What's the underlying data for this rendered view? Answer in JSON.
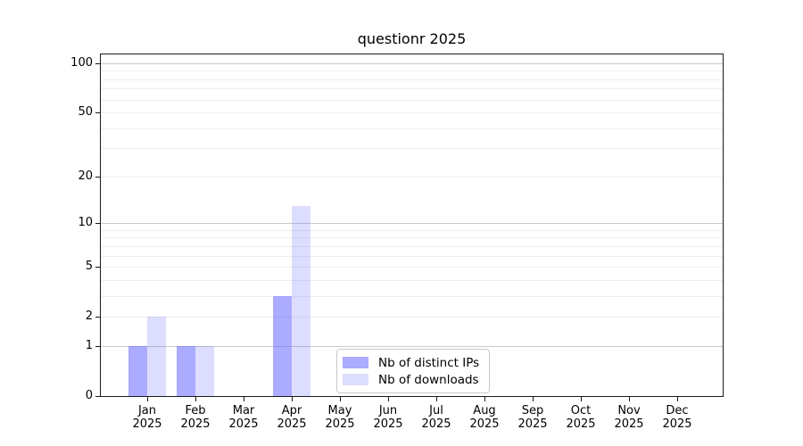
{
  "figure": {
    "background": "#ffffff"
  },
  "chart_data": {
    "type": "bar",
    "title": "questionr 2025",
    "categories": [
      "Jan",
      "Feb",
      "Mar",
      "Apr",
      "May",
      "Jun",
      "Jul",
      "Aug",
      "Sep",
      "Oct",
      "Nov",
      "Dec"
    ],
    "category_year": "2025",
    "series": [
      {
        "name": "Nb of distinct IPs",
        "color": "rgba(102,102,255,0.55)",
        "values": [
          1,
          1,
          0,
          3,
          0,
          0,
          0,
          0,
          0,
          0,
          0,
          0
        ]
      },
      {
        "name": "Nb of downloads",
        "color": "rgba(102,102,255,0.22)",
        "values": [
          2,
          1,
          0,
          13,
          0,
          0,
          0,
          0,
          0,
          0,
          0,
          0
        ]
      }
    ],
    "xlabel": "",
    "ylabel": "",
    "yscale": "log1p",
    "ylim": [
      0,
      113
    ],
    "y_ticks": [
      0,
      1,
      2,
      5,
      10,
      20,
      50,
      100
    ],
    "y_major_gridlines": [
      1,
      10,
      100
    ],
    "y_minor_gridlines": [
      2,
      3,
      4,
      5,
      6,
      7,
      8,
      9,
      20,
      30,
      40,
      50,
      60,
      70,
      80,
      90
    ],
    "grid": true,
    "legend_position": "lower center"
  },
  "colors": {
    "major_grid": "#c9c9c9",
    "minor_grid": "#ededed",
    "axis": "#1a1a1a",
    "text": "#000000",
    "legend_border": "#c8c8c8"
  }
}
